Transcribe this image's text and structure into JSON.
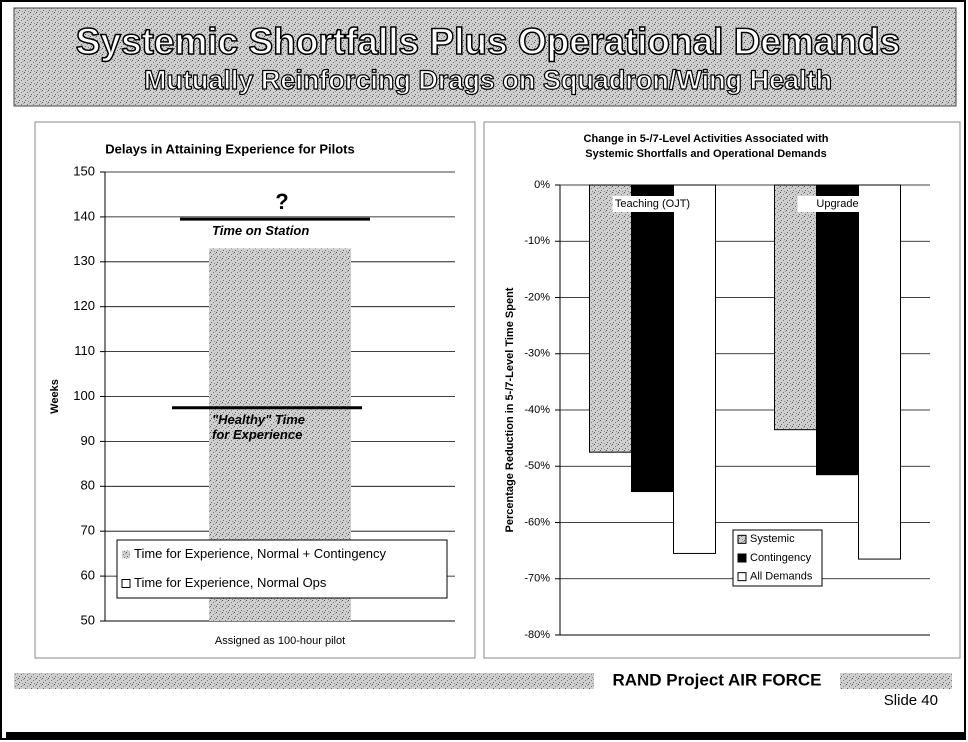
{
  "slide": {
    "title": "Systemic Shortfalls Plus Operational Demands",
    "subtitle": "Mutually Reinforcing Drags on Squadron/Wing Health",
    "footer": "RAND Project AIR FORCE",
    "slide_number": "Slide 40"
  },
  "chart_data": [
    {
      "type": "bar",
      "title": "Delays in Attaining Experience for Pilots",
      "ylabel": "Weeks",
      "categories": [
        "Assigned as 100-hour pilot"
      ],
      "series": [
        {
          "name": "Time for Experience, Normal + Contingency",
          "color": "#b4b4b4",
          "values": [
            133
          ]
        },
        {
          "name": "Time for Experience, Normal Ops",
          "color": "#ffffff",
          "values": [
            97
          ]
        }
      ],
      "overlap": true,
      "ylim": [
        50,
        150
      ],
      "yticks": [
        50,
        60,
        70,
        80,
        90,
        100,
        110,
        120,
        130,
        140,
        150
      ],
      "grid": true,
      "marker": "?",
      "reference_lines": [
        {
          "label": "Time on Station",
          "value": 139.5
        },
        {
          "label": "\"Healthy\" Time for Experience",
          "value": 97.5
        }
      ],
      "legend": "lower center"
    },
    {
      "type": "bar",
      "title": "Change in 5-/7-Level Activities Associated with Systemic Shortfalls and Operational Demands",
      "ylabel": "Percentage Reduction in 5-/7-Level Time Spent",
      "categories": [
        "Teaching (OJT)",
        "Upgrade"
      ],
      "series": [
        {
          "name": "Systemic",
          "color": "#a8a8a8",
          "values": [
            -47.5,
            -43.5
          ]
        },
        {
          "name": "Contingency",
          "color": "#000000",
          "values": [
            -54.5,
            -51.5
          ]
        },
        {
          "name": "All Demands",
          "color": "#ffffff",
          "values": [
            -65.5,
            -66.5
          ]
        }
      ],
      "ylim": [
        -80,
        0
      ],
      "yticks": [
        {
          "value": -80,
          "label": "-80%"
        },
        {
          "value": -70,
          "label": "-70%"
        },
        {
          "value": -60,
          "label": "-60%"
        },
        {
          "value": -50,
          "label": "-50%"
        },
        {
          "value": -40,
          "label": "-40%"
        },
        {
          "value": -30,
          "label": "-30%"
        },
        {
          "value": -20,
          "label": "-20%"
        },
        {
          "value": -10,
          "label": "-10%"
        },
        {
          "value": 0,
          "label": "0%"
        }
      ],
      "grid": true,
      "legend": "lower right"
    }
  ]
}
